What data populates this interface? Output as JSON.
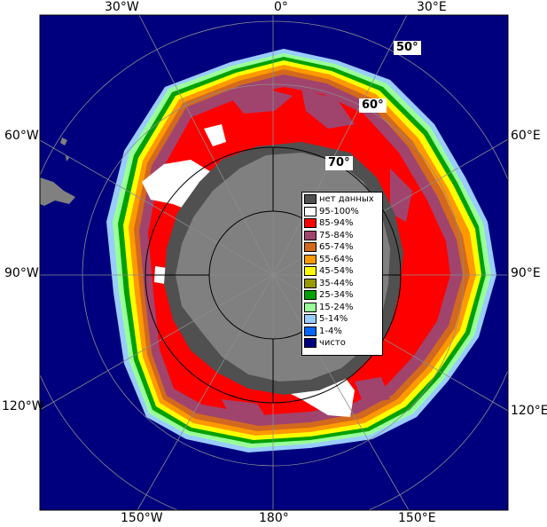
{
  "map": {
    "ocean_color": "#00007f",
    "land_color": "#808080",
    "nodata_color": "#505050",
    "border_color": "#000000",
    "graticule_color": "#8c8c8c"
  },
  "longitude_labels": {
    "top_30w": "30°W",
    "top_0": "0°",
    "top_30e": "30°E",
    "left_60w": "60°W",
    "right_60e": "60°E",
    "left_90w": "90°W",
    "right_90e": "90°E",
    "left_120w": "120°W",
    "right_120e": "120°E",
    "bottom_150w": "150°W",
    "bottom_180": "180°",
    "bottom_150e": "150°E"
  },
  "latitude_labels": {
    "lat50": "50°",
    "lat60": "60°",
    "lat70": "70°"
  },
  "legend": [
    {
      "label": "нет данных",
      "color": "#505050"
    },
    {
      "label": "95-100%",
      "color": "#ffffff"
    },
    {
      "label": "85-94%",
      "color": "#ff0000"
    },
    {
      "label": "75-84%",
      "color": "#a0446e"
    },
    {
      "label": "65-74%",
      "color": "#d2691e"
    },
    {
      "label": "55-64%",
      "color": "#ff9900"
    },
    {
      "label": "45-54%",
      "color": "#ffff00"
    },
    {
      "label": "35-44%",
      "color": "#999900"
    },
    {
      "label": "25-34%",
      "color": "#00a000"
    },
    {
      "label": "15-24%",
      "color": "#99ff99"
    },
    {
      "label": "5-14%",
      "color": "#99ccff"
    },
    {
      "label": "1-4%",
      "color": "#0066ff"
    },
    {
      "label": "чисто",
      "color": "#00007f"
    }
  ]
}
